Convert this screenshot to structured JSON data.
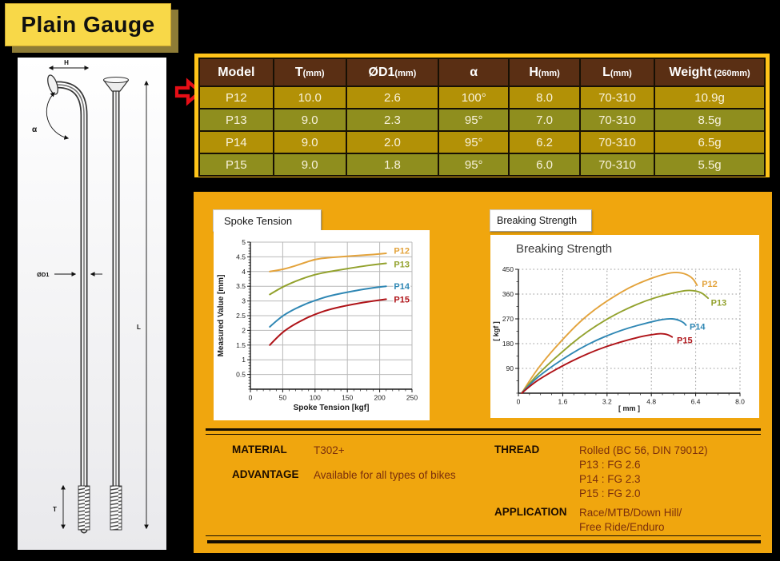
{
  "page_title": "Plain Gauge",
  "diagram": {
    "dim_labels": {
      "h": "H",
      "alpha": "α",
      "d1": "ØD1",
      "l": "L",
      "t": "T"
    }
  },
  "spec_table": {
    "headers": [
      {
        "main": "Model",
        "sub": ""
      },
      {
        "main": "T",
        "sub": "(mm)"
      },
      {
        "main": "ØD1",
        "sub": "(mm)"
      },
      {
        "main": "α",
        "sub": ""
      },
      {
        "main": "H",
        "sub": "(mm)"
      },
      {
        "main": "L",
        "sub": "(mm)"
      },
      {
        "main": "Weight",
        "sub": " (260mm)"
      }
    ],
    "rows": [
      [
        "P12",
        "10.0",
        "2.6",
        "100°",
        "8.0",
        "70-310",
        "10.9g"
      ],
      [
        "P13",
        "9.0",
        "2.3",
        "95°",
        "7.0",
        "70-310",
        "8.5g"
      ],
      [
        "P14",
        "9.0",
        "2.0",
        "95°",
        "6.2",
        "70-310",
        "6.5g"
      ],
      [
        "P15",
        "9.0",
        "1.8",
        "95°",
        "6.0",
        "70-310",
        "5.5g"
      ]
    ]
  },
  "section_labels": {
    "spoke_tension": "Spoke Tension",
    "breaking_strength": "Breaking Strength"
  },
  "chart_data": [
    {
      "id": "spoke_tension",
      "type": "line",
      "title": "",
      "xlabel": "Spoke Tension [kgf]",
      "ylabel": "Measured Value [mm]",
      "xlim": [
        0,
        250
      ],
      "ylim": [
        0,
        5
      ],
      "grid": "solid",
      "xticks": [
        0,
        50,
        100,
        150,
        200,
        250
      ],
      "xtick_labels": [
        "0",
        "50",
        "100",
        "150",
        "200",
        "250"
      ],
      "yticks": [
        0.5,
        1,
        1.5,
        2,
        2.5,
        3,
        3.5,
        4,
        4.5,
        5
      ],
      "ytick_labels": [
        "0.5",
        "1",
        "1.5",
        "2",
        "2.5",
        "3",
        "3.5",
        "4",
        "4.5",
        "5"
      ],
      "x_minor": 10,
      "y_minor": 0.1,
      "legend_position": "right-of-curves",
      "series": [
        {
          "name": "P12",
          "color": "#E3A33C",
          "label_at": [
            222,
            4.72
          ],
          "points": [
            [
              30,
              4.0
            ],
            [
              45,
              4.05
            ],
            [
              60,
              4.13
            ],
            [
              80,
              4.27
            ],
            [
              100,
              4.42
            ],
            [
              120,
              4.47
            ],
            [
              145,
              4.51
            ],
            [
              170,
              4.55
            ],
            [
              190,
              4.58
            ],
            [
              210,
              4.62
            ]
          ]
        },
        {
          "name": "P13",
          "color": "#93A22E",
          "label_at": [
            222,
            4.25
          ],
          "points": [
            [
              30,
              3.22
            ],
            [
              45,
              3.42
            ],
            [
              60,
              3.58
            ],
            [
              80,
              3.76
            ],
            [
              100,
              3.9
            ],
            [
              120,
              3.99
            ],
            [
              145,
              4.08
            ],
            [
              170,
              4.17
            ],
            [
              190,
              4.23
            ],
            [
              210,
              4.28
            ]
          ]
        },
        {
          "name": "P14",
          "color": "#2F87B4",
          "label_at": [
            222,
            3.5
          ],
          "points": [
            [
              30,
              2.12
            ],
            [
              45,
              2.42
            ],
            [
              60,
              2.63
            ],
            [
              80,
              2.85
            ],
            [
              100,
              3.02
            ],
            [
              120,
              3.16
            ],
            [
              145,
              3.28
            ],
            [
              170,
              3.38
            ],
            [
              190,
              3.45
            ],
            [
              210,
              3.5
            ]
          ]
        },
        {
          "name": "P15",
          "color": "#AF1318",
          "label_at": [
            222,
            3.06
          ],
          "points": [
            [
              30,
              1.5
            ],
            [
              45,
              1.85
            ],
            [
              60,
              2.1
            ],
            [
              80,
              2.35
            ],
            [
              100,
              2.55
            ],
            [
              120,
              2.7
            ],
            [
              145,
              2.83
            ],
            [
              170,
              2.93
            ],
            [
              190,
              3.0
            ],
            [
              210,
              3.06
            ]
          ]
        }
      ]
    },
    {
      "id": "breaking_strength",
      "type": "line",
      "title": "Breaking Strength",
      "xlabel": "[ mm ]",
      "ylabel": "[ kgf ]",
      "xlim": [
        0,
        8
      ],
      "ylim": [
        0,
        450
      ],
      "grid": "dotted",
      "xticks": [
        0,
        1.6,
        3.2,
        4.8,
        6.4,
        8.0
      ],
      "xtick_labels": [
        "0",
        "1.6",
        "3.2",
        "4.8",
        "6.4",
        "8.0"
      ],
      "yticks": [
        90,
        180,
        270,
        360,
        450
      ],
      "ytick_labels": [
        "90",
        "180",
        "270",
        "360",
        "450"
      ],
      "x_minor": 0.4,
      "y_minor": 45,
      "legend_position": "right-of-curves",
      "series": [
        {
          "name": "P12",
          "color": "#E3A33C",
          "label_at": [
            6.62,
            398
          ],
          "points": [
            [
              0.12,
              0
            ],
            [
              0.5,
              62
            ],
            [
              1.0,
              128
            ],
            [
              1.6,
              196
            ],
            [
              2.2,
              258
            ],
            [
              2.8,
              308
            ],
            [
              3.4,
              348
            ],
            [
              4.0,
              384
            ],
            [
              4.6,
              410
            ],
            [
              5.1,
              428
            ],
            [
              5.6,
              440
            ],
            [
              6.0,
              436
            ],
            [
              6.3,
              418
            ],
            [
              6.45,
              392
            ]
          ]
        },
        {
          "name": "P13",
          "color": "#93A22E",
          "label_at": [
            6.95,
            330
          ],
          "points": [
            [
              0.12,
              0
            ],
            [
              0.5,
              48
            ],
            [
              1.0,
              98
            ],
            [
              1.6,
              152
            ],
            [
              2.2,
              203
            ],
            [
              2.8,
              245
            ],
            [
              3.4,
              281
            ],
            [
              4.0,
              311
            ],
            [
              4.6,
              336
            ],
            [
              5.2,
              355
            ],
            [
              5.8,
              369
            ],
            [
              6.2,
              375
            ],
            [
              6.6,
              367
            ],
            [
              6.85,
              345
            ]
          ]
        },
        {
          "name": "P14",
          "color": "#2F87B4",
          "label_at": [
            6.18,
            242
          ],
          "points": [
            [
              0.12,
              0
            ],
            [
              0.5,
              42
            ],
            [
              1.0,
              82
            ],
            [
              1.6,
              124
            ],
            [
              2.2,
              161
            ],
            [
              2.8,
              192
            ],
            [
              3.4,
              217
            ],
            [
              4.0,
              238
            ],
            [
              4.6,
              254
            ],
            [
              5.0,
              264
            ],
            [
              5.4,
              271
            ],
            [
              5.7,
              269
            ],
            [
              5.95,
              258
            ],
            [
              6.05,
              247
            ]
          ]
        },
        {
          "name": "P15",
          "color": "#AF1318",
          "label_at": [
            5.72,
            193
          ],
          "points": [
            [
              0.12,
              0
            ],
            [
              0.5,
              34
            ],
            [
              1.0,
              66
            ],
            [
              1.6,
              100
            ],
            [
              2.2,
              130
            ],
            [
              2.8,
              156
            ],
            [
              3.4,
              177
            ],
            [
              4.0,
              195
            ],
            [
              4.5,
              207
            ],
            [
              4.9,
              214
            ],
            [
              5.15,
              217
            ],
            [
              5.4,
              213
            ],
            [
              5.55,
              204
            ]
          ]
        }
      ]
    }
  ],
  "specs": {
    "material_label": "MATERIAL",
    "material_value": "T302+",
    "advantage_label": "ADVANTAGE",
    "advantage_value": "Available for all types of bikes",
    "thread_label": "THREAD",
    "thread_lines": [
      "Rolled (BC 56, DIN 79012)",
      "P13 : FG 2.6",
      "P14 : FG 2.3",
      "P15 : FG 2.0"
    ],
    "application_label": "APPLICATION",
    "application_lines": [
      "Race/MTB/Down Hill/",
      "Free Ride/Enduro"
    ]
  },
  "colors": {
    "panel_amber": "#F0A60E",
    "table_border_gold": "#FFC419",
    "table_header_brown": "#5A2F14",
    "row_gold": "#B29106",
    "row_olive": "#8F8E1E",
    "cell_text": "#F8F2DC",
    "title_yellow": "#F8D848",
    "arrow_red": "#E50E16",
    "series_p12": "#E3A33C",
    "series_p13": "#93A22E",
    "series_p14": "#2F87B4",
    "series_p15": "#AF1318"
  }
}
